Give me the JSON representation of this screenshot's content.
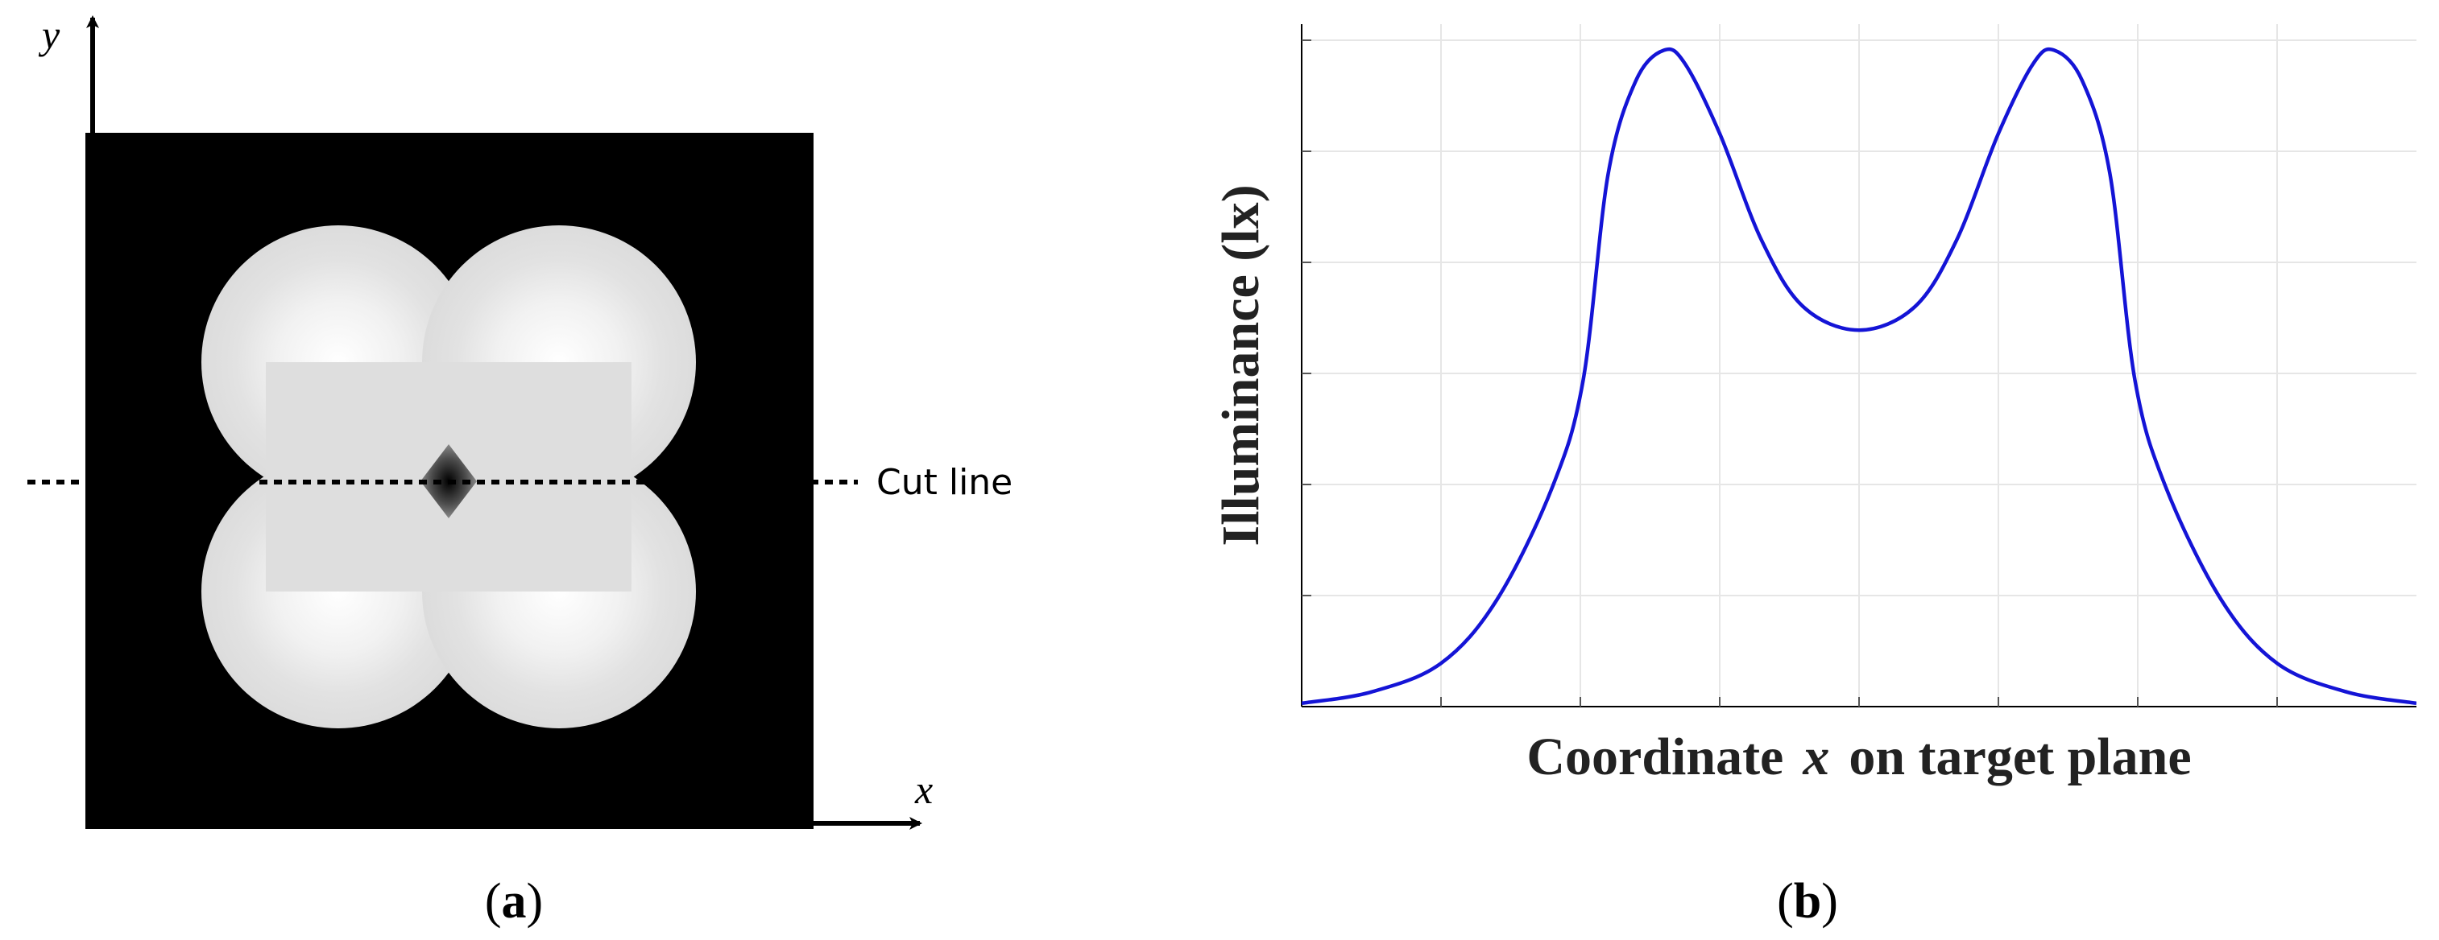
{
  "panel_a": {
    "label_open": "(",
    "label_letter": "a",
    "label_close": ")",
    "x_axis_label": "x",
    "y_axis_label": "y",
    "cut_line_label": "Cut line"
  },
  "panel_b": {
    "label_open": "(",
    "label_letter": "b",
    "label_close": ")"
  },
  "chart_data": {
    "type": "line",
    "title": "",
    "xlabel_main": "Coordinate",
    "xlabel_var": "x",
    "xlabel_rest": "on target plane",
    "ylabel": "Illuminance (lx)",
    "xlim": [
      0,
      8
    ],
    "ylim": [
      0,
      1
    ],
    "grid": true,
    "tick_labels_shown": false,
    "legend": "none",
    "series": [
      {
        "color": "#1414d6",
        "points": [
          [
            0.0,
            0.005
          ],
          [
            0.5,
            0.022
          ],
          [
            1.0,
            0.065
          ],
          [
            1.4,
            0.16
          ],
          [
            1.8,
            0.33
          ],
          [
            2.02,
            0.49
          ],
          [
            2.2,
            0.8
          ],
          [
            2.4,
            0.94
          ],
          [
            2.6,
            0.985
          ],
          [
            2.75,
            0.965
          ],
          [
            3.0,
            0.86
          ],
          [
            3.3,
            0.7
          ],
          [
            3.6,
            0.6
          ],
          [
            4.0,
            0.565
          ],
          [
            4.4,
            0.6
          ],
          [
            4.7,
            0.7
          ],
          [
            5.0,
            0.86
          ],
          [
            5.25,
            0.965
          ],
          [
            5.4,
            0.985
          ],
          [
            5.6,
            0.94
          ],
          [
            5.8,
            0.8
          ],
          [
            5.98,
            0.49
          ],
          [
            6.2,
            0.33
          ],
          [
            6.6,
            0.16
          ],
          [
            7.0,
            0.065
          ],
          [
            7.5,
            0.022
          ],
          [
            8.0,
            0.005
          ]
        ]
      }
    ]
  }
}
